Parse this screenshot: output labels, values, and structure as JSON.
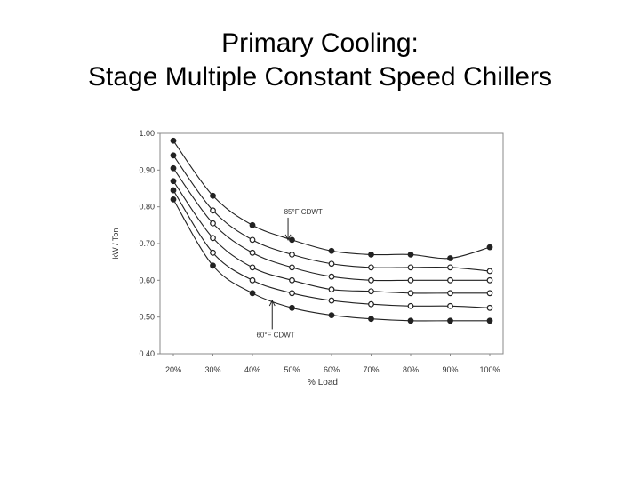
{
  "title": {
    "line1": "Primary Cooling:",
    "line2": "Stage Multiple Constant Speed Chillers"
  },
  "chart_data": {
    "type": "line",
    "xlabel": "% Load",
    "ylabel": "kW / Ton",
    "x": [
      20,
      30,
      40,
      50,
      60,
      70,
      80,
      90,
      100
    ],
    "x_tick_labels": [
      "20%",
      "30%",
      "40%",
      "50%",
      "60%",
      "70%",
      "80%",
      "90%",
      "100%"
    ],
    "ylim": [
      0.4,
      1.0
    ],
    "y_ticks": [
      0.4,
      0.5,
      0.6,
      0.7,
      0.8,
      0.9,
      1.0
    ],
    "y_tick_labels": [
      "0.40",
      "0.50",
      "0.60",
      "0.70",
      "0.80",
      "0.90",
      "1.00"
    ],
    "grid": false,
    "series": [
      {
        "values": [
          0.98,
          0.83,
          0.75,
          0.71,
          0.68,
          0.67,
          0.67,
          0.66,
          0.69
        ]
      },
      {
        "values": [
          0.94,
          0.79,
          0.71,
          0.67,
          0.645,
          0.635,
          0.635,
          0.635,
          0.625
        ]
      },
      {
        "values": [
          0.905,
          0.755,
          0.675,
          0.635,
          0.61,
          0.6,
          0.6,
          0.6,
          0.6
        ]
      },
      {
        "values": [
          0.87,
          0.715,
          0.635,
          0.6,
          0.575,
          0.57,
          0.565,
          0.565,
          0.565
        ]
      },
      {
        "values": [
          0.845,
          0.675,
          0.6,
          0.565,
          0.545,
          0.535,
          0.53,
          0.53,
          0.525
        ]
      },
      {
        "values": [
          0.82,
          0.64,
          0.565,
          0.525,
          0.505,
          0.495,
          0.49,
          0.49,
          0.49
        ]
      }
    ],
    "annotations": [
      {
        "text": "85°F CDWT",
        "x": 48,
        "y": 0.78,
        "series_index": 0,
        "arrow_x": 49,
        "arrow_y": 0.71
      },
      {
        "text": "60°F CDWT",
        "x": 41,
        "y": 0.445,
        "series_index": 5,
        "arrow_x": 45,
        "arrow_y": 0.545
      }
    ]
  }
}
